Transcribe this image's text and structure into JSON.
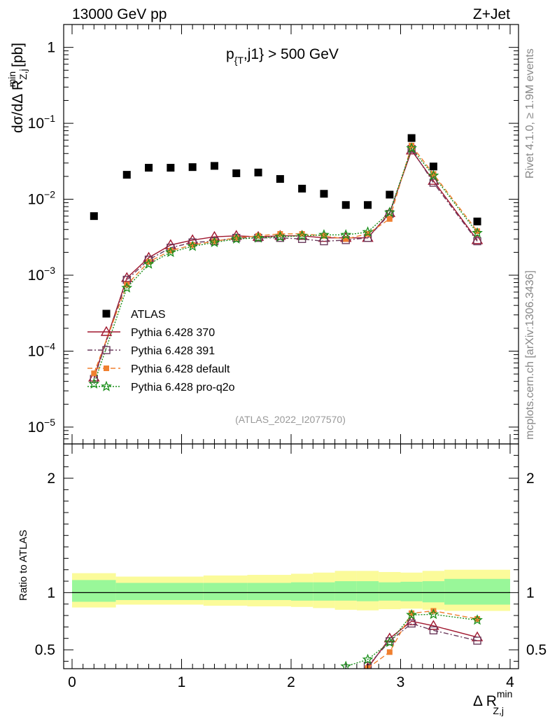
{
  "header": {
    "left": "13000 GeV pp",
    "right": "Z+Jet"
  },
  "cut": {
    "pre": "p",
    "sub": "{T",
    "post": ",j1} > 500 GeV"
  },
  "side_labels": {
    "rivet": "Rivet 4.1.0, ≥ 1.9M events",
    "mcplots": "mcplots.cern.ch [arXiv:1306.3436]"
  },
  "analysis_id": "(ATLAS_2022_I2077570)",
  "y_axis": {
    "main_pre": "dσ/dΔ R",
    "main_sub": "Z,j",
    "main_sup": "min",
    "main_post": " [pb]",
    "ratio": "Ratio to ATLAS"
  },
  "x_axis": {
    "pre": "Δ R",
    "sub": "Z,j",
    "sup": "min"
  },
  "colors": {
    "atlas": "#000000",
    "p370": "#a0162e",
    "p391": "#6a3a5c",
    "default": "#f08030",
    "proq2o": "#1a8f1a",
    "band_inner": "#99f799",
    "band_outer": "#fbfb9a"
  },
  "chart_data": {
    "type": "scatter",
    "x": [
      0.2,
      0.5,
      0.7,
      0.9,
      1.1,
      1.3,
      1.5,
      1.7,
      1.9,
      2.1,
      2.3,
      2.5,
      2.7,
      2.9,
      3.1,
      3.3,
      3.7
    ],
    "xlim": [
      -0.1,
      4.1
    ],
    "x_ticks": [
      "0",
      "1",
      "2",
      "3",
      "4"
    ],
    "main": {
      "yscale": "log",
      "ylim": [
        6e-06,
        2
      ],
      "y_ticks": [
        {
          "value": 1e-05,
          "base": "10",
          "exp": "−5"
        },
        {
          "value": 0.0001,
          "base": "10",
          "exp": "−4"
        },
        {
          "value": 0.001,
          "base": "10",
          "exp": "−3"
        },
        {
          "value": 0.01,
          "base": "10",
          "exp": "−2"
        },
        {
          "value": 0.1,
          "base": "10",
          "exp": "−1"
        },
        {
          "value": 1,
          "base": "1",
          "exp": ""
        }
      ],
      "series": [
        {
          "name": "ATLAS",
          "key": "atlas",
          "marker": "square-filled",
          "line": "none",
          "values": [
            0.006,
            0.021,
            0.026,
            0.026,
            0.0265,
            0.0275,
            0.022,
            0.0225,
            0.0185,
            0.0138,
            0.0118,
            0.0084,
            0.0084,
            0.0115,
            0.064,
            0.027,
            0.0051
          ]
        },
        {
          "name": "Pythia 6.428 370",
          "key": "p370",
          "marker": "triangle-open",
          "line": "solid",
          "values": [
            4.5e-05,
            0.00092,
            0.0017,
            0.0025,
            0.0029,
            0.0032,
            0.0033,
            0.0032,
            0.0033,
            0.0033,
            0.0031,
            0.0031,
            0.0031,
            0.0066,
            0.044,
            0.0175,
            0.0029
          ]
        },
        {
          "name": "Pythia 6.428 391",
          "key": "p391",
          "marker": "square-open",
          "line": "dashdot",
          "values": [
            4.3e-05,
            0.00087,
            0.0016,
            0.0023,
            0.0027,
            0.0028,
            0.0031,
            0.0031,
            0.0031,
            0.003,
            0.0028,
            0.0029,
            0.0031,
            0.0064,
            0.046,
            0.0165,
            0.0028
          ]
        },
        {
          "name": "Pythia 6.428 default",
          "key": "default",
          "marker": "square-filled-small",
          "line": "dashed",
          "values": [
            5.1e-05,
            0.00075,
            0.0015,
            0.0021,
            0.0025,
            0.0028,
            0.0031,
            0.0033,
            0.0035,
            0.0035,
            0.0033,
            0.003,
            0.0035,
            0.0055,
            0.051,
            0.0215,
            0.0038
          ]
        },
        {
          "name": "Pythia 6.428 pro-q2o",
          "key": "proq2o",
          "marker": "star-open",
          "line": "dotted",
          "values": [
            3.7e-05,
            0.00068,
            0.0014,
            0.002,
            0.0024,
            0.0027,
            0.003,
            0.0031,
            0.0032,
            0.0033,
            0.0034,
            0.0034,
            0.0037,
            0.0067,
            0.047,
            0.0205,
            0.0036
          ]
        }
      ]
    },
    "ratio": {
      "ylim": [
        0.335,
        2.3
      ],
      "y_ticks": [
        "0.5",
        "1",
        "2"
      ],
      "y_tick_values": [
        0.5,
        1,
        2
      ],
      "band_edges": [
        0.0,
        0.4,
        1.0,
        1.2,
        1.6,
        2.0,
        2.2,
        2.4,
        2.6,
        2.8,
        3.0,
        3.2,
        3.4,
        4.0
      ],
      "band_inner": [
        [
          0.92,
          1.11
        ],
        [
          0.935,
          1.085
        ],
        [
          0.935,
          1.085
        ],
        [
          0.935,
          1.085
        ],
        [
          0.935,
          1.085
        ],
        [
          0.93,
          1.09
        ],
        [
          0.93,
          1.09
        ],
        [
          0.93,
          1.1
        ],
        [
          0.925,
          1.1
        ],
        [
          0.93,
          1.09
        ],
        [
          0.925,
          1.095
        ],
        [
          0.915,
          1.1
        ],
        [
          0.895,
          1.12
        ]
      ],
      "band_outer": [
        [
          0.87,
          1.17
        ],
        [
          0.895,
          1.14
        ],
        [
          0.895,
          1.14
        ],
        [
          0.885,
          1.15
        ],
        [
          0.88,
          1.155
        ],
        [
          0.875,
          1.165
        ],
        [
          0.865,
          1.175
        ],
        [
          0.85,
          1.19
        ],
        [
          0.845,
          1.19
        ],
        [
          0.855,
          1.18
        ],
        [
          0.86,
          1.175
        ],
        [
          0.85,
          1.19
        ],
        [
          0.84,
          1.2
        ]
      ],
      "series": [
        {
          "key": "p370",
          "x": [
            2.7,
            2.9,
            3.1,
            3.3,
            3.7
          ],
          "values": [
            0.34,
            0.6,
            0.75,
            0.71,
            0.61
          ]
        },
        {
          "key": "p391",
          "x": [
            2.7,
            2.9,
            3.1,
            3.3,
            3.7
          ],
          "values": [
            0.36,
            0.575,
            0.73,
            0.67,
            0.58
          ]
        },
        {
          "key": "default",
          "x": [
            2.7,
            2.9,
            3.1,
            3.3,
            3.7
          ],
          "values": [
            0.34,
            0.48,
            0.82,
            0.84,
            0.77
          ]
        },
        {
          "key": "proq2o",
          "x": [
            2.5,
            2.7,
            2.9,
            3.1,
            3.3,
            3.7
          ],
          "values": [
            0.355,
            0.415,
            0.565,
            0.805,
            0.81,
            0.76
          ]
        }
      ]
    }
  }
}
